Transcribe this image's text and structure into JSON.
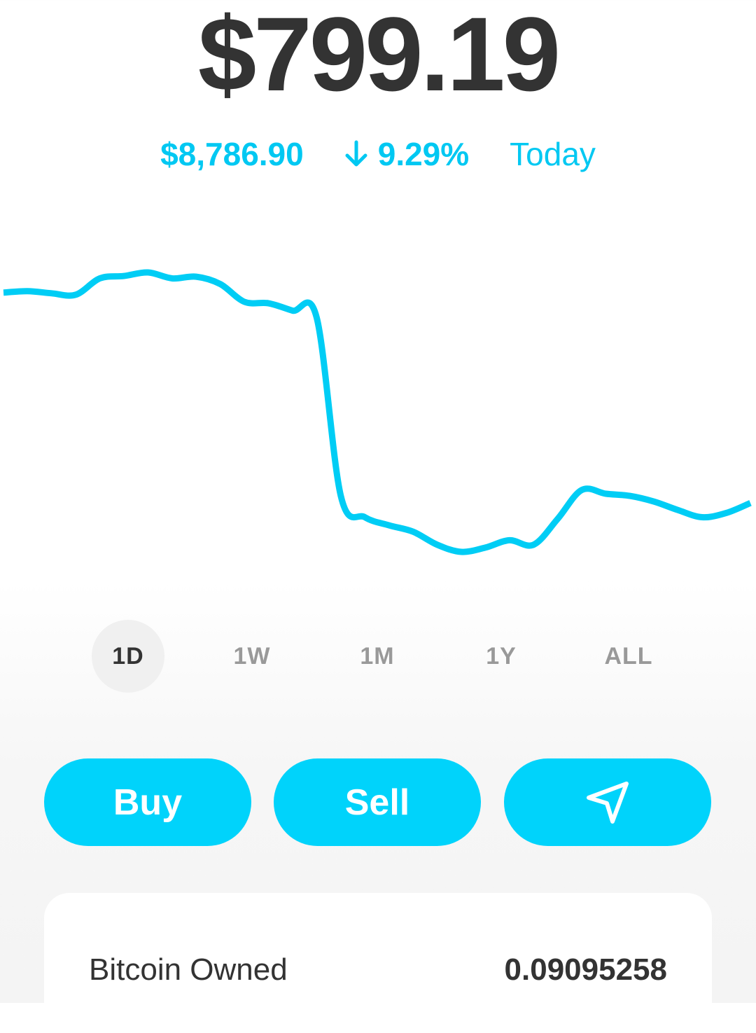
{
  "header": {
    "balance": "$799.19",
    "btc_price": "$8,786.90",
    "change": "9.29%",
    "period": "Today"
  },
  "chart_data": {
    "type": "line",
    "color": "#00cdf5",
    "values": [
      9680,
      9686,
      9677,
      9671,
      9740,
      9750,
      9765,
      9740,
      9747,
      9716,
      9641,
      9635,
      9604,
      9574,
      8823,
      8733,
      8699,
      8672,
      8617,
      8587,
      8605,
      8636,
      8617,
      8726,
      8848,
      8832,
      8823,
      8799,
      8763,
      8733,
      8751,
      8793
    ]
  },
  "ranges": [
    "1D",
    "1W",
    "1M",
    "1Y",
    "ALL"
  ],
  "actions": [
    "Buy",
    "Sell"
  ],
  "holding": {
    "label": "Bitcoin Owned",
    "value": "0.09095258"
  }
}
